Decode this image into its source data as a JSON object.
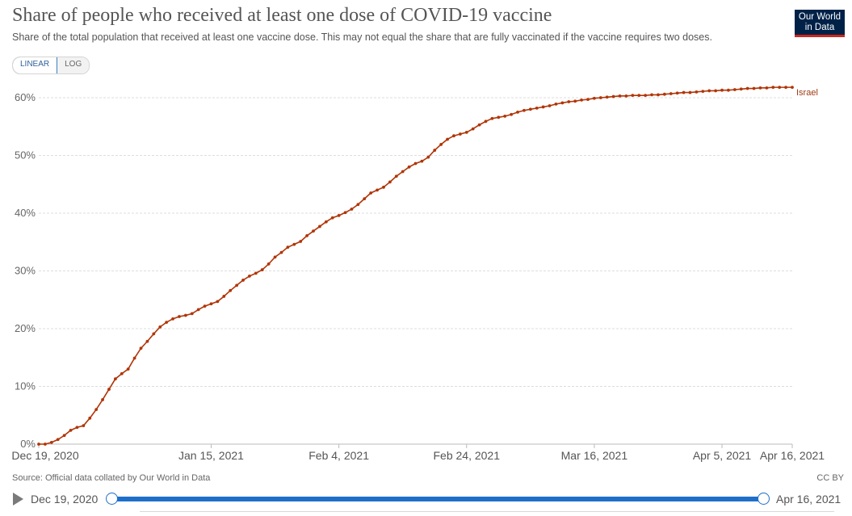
{
  "header": {
    "title": "Share of people who received at least one dose of COVID-19 vaccine",
    "subtitle": "Share of the total population that received at least one vaccine dose. This may not equal the share that are fully vaccinated if the vaccine requires two doses.",
    "logo_line1": "Our World",
    "logo_line2": "in Data"
  },
  "scale_toggle": {
    "linear": "LINEAR",
    "log": "LOG",
    "selected": "LINEAR"
  },
  "chart_data": {
    "type": "line",
    "title": "Share of people who received at least one dose of COVID-19 vaccine",
    "ylabel": "",
    "xlabel": "",
    "ylim": [
      0,
      62
    ],
    "y_ticks": [
      0,
      10,
      20,
      30,
      40,
      50,
      60
    ],
    "y_tick_labels": [
      "0%",
      "10%",
      "20%",
      "30%",
      "40%",
      "50%",
      "60%"
    ],
    "x_tick_labels": [
      "Dec 19, 2020",
      "Jan 15, 2021",
      "Feb 4, 2021",
      "Feb 24, 2021",
      "Mar 16, 2021",
      "Apr 5, 2021",
      "Apr 16, 2021"
    ],
    "x_tick_days": [
      0,
      27,
      47,
      67,
      87,
      107,
      118
    ],
    "line_color": "#b13507",
    "series": [
      {
        "name": "Israel",
        "start_date": "Dec 19, 2020",
        "end_date": "Apr 16, 2021",
        "days": [
          0,
          1,
          2,
          3,
          4,
          5,
          6,
          7,
          8,
          9,
          10,
          11,
          12,
          13,
          14,
          15,
          16,
          17,
          18,
          19,
          20,
          21,
          22,
          23,
          24,
          25,
          26,
          27,
          28,
          29,
          30,
          31,
          32,
          33,
          34,
          35,
          36,
          37,
          38,
          39,
          40,
          41,
          42,
          43,
          44,
          45,
          46,
          47,
          48,
          49,
          50,
          51,
          52,
          53,
          54,
          55,
          56,
          57,
          58,
          59,
          60,
          61,
          62,
          63,
          64,
          65,
          66,
          67,
          68,
          69,
          70,
          71,
          72,
          73,
          74,
          75,
          76,
          77,
          78,
          79,
          80,
          81,
          82,
          83,
          84,
          85,
          86,
          87,
          88,
          89,
          90,
          91,
          92,
          93,
          94,
          95,
          96,
          97,
          98,
          99,
          100,
          101,
          102,
          103,
          104,
          105,
          106,
          107,
          108,
          109,
          110,
          111,
          112,
          113,
          114,
          115,
          116,
          117,
          118
        ],
        "values": [
          0,
          0,
          0.3,
          0.8,
          1.5,
          2.4,
          2.9,
          3.2,
          4.5,
          6,
          7.7,
          9.5,
          11.3,
          12.2,
          13,
          14.9,
          16.6,
          17.8,
          19.1,
          20.3,
          21.1,
          21.7,
          22.1,
          22.3,
          22.6,
          23.3,
          23.9,
          24.3,
          24.7,
          25.6,
          26.6,
          27.5,
          28.4,
          29.1,
          29.6,
          30.2,
          31.2,
          32.4,
          33.2,
          34.1,
          34.6,
          35.1,
          36.1,
          36.9,
          37.7,
          38.5,
          39.2,
          39.6,
          40.1,
          40.7,
          41.5,
          42.5,
          43.5,
          44,
          44.5,
          45.4,
          46.4,
          47.2,
          48,
          48.6,
          49,
          49.7,
          50.9,
          51.9,
          52.8,
          53.4,
          53.7,
          54,
          54.6,
          55.3,
          55.9,
          56.4,
          56.6,
          56.8,
          57.1,
          57.5,
          57.8,
          58,
          58.2,
          58.4,
          58.6,
          58.9,
          59.1,
          59.3,
          59.4,
          59.6,
          59.7,
          59.9,
          60,
          60.1,
          60.2,
          60.3,
          60.3,
          60.4,
          60.4,
          60.4,
          60.5,
          60.5,
          60.6,
          60.7,
          60.8,
          60.9,
          60.9,
          61,
          61.1,
          61.2,
          61.2,
          61.3,
          61.3,
          61.4,
          61.5,
          61.6,
          61.6,
          61.7,
          61.7,
          61.8,
          61.8,
          61.8,
          61.8
        ]
      }
    ],
    "series_label": "Israel"
  },
  "footer": {
    "source": "Source: Official data collated by Our World in Data",
    "license": "CC BY"
  },
  "timeline": {
    "start_label": "Dec 19, 2020",
    "end_label": "Apr 16, 2021"
  }
}
